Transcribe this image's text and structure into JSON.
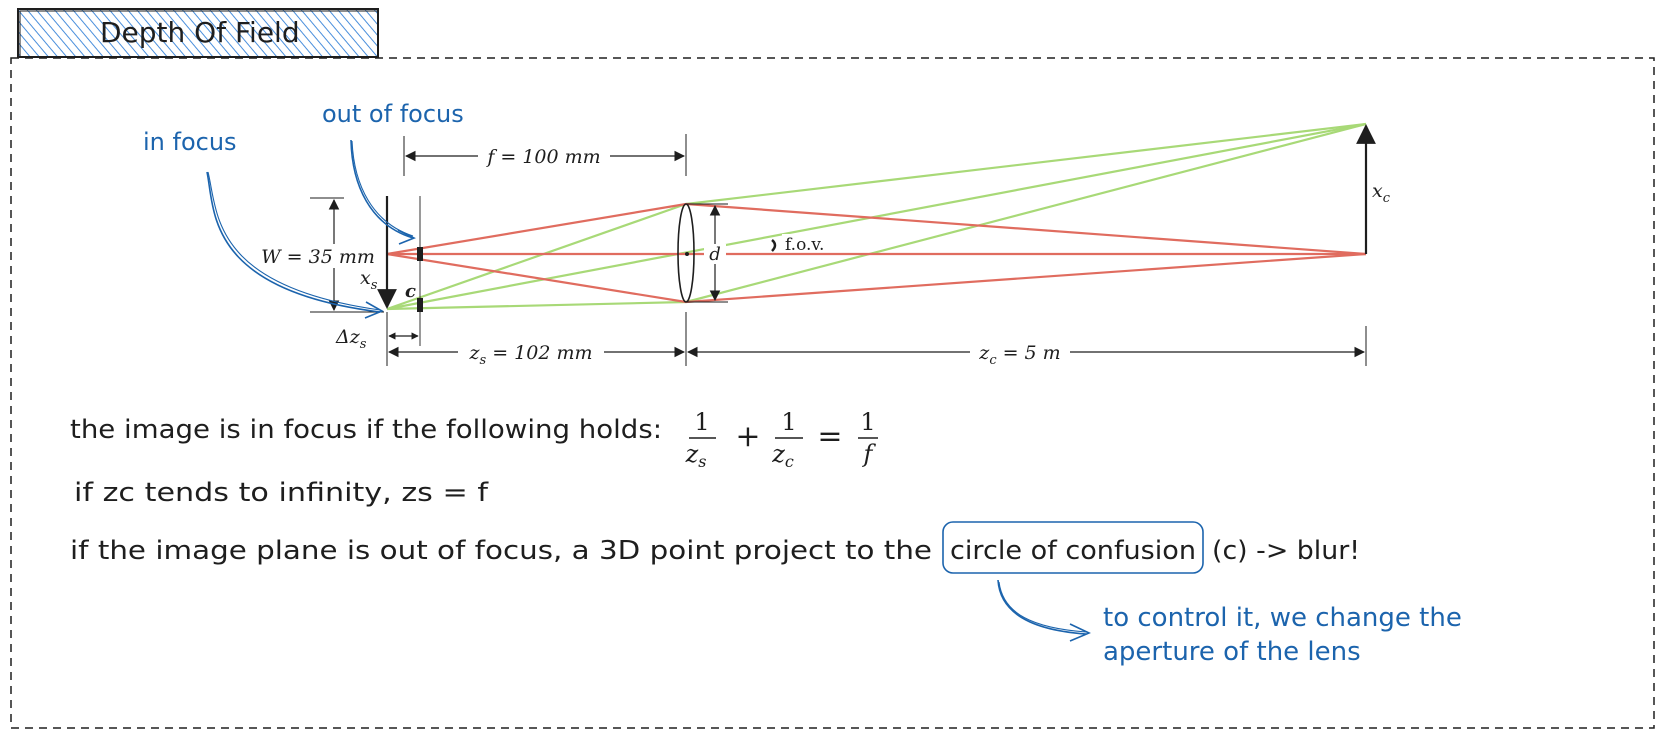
{
  "title": "Depth Of Field",
  "colors": {
    "ink": "#1e1e1e",
    "blue": "#1c64ad",
    "red": "#e06c5f",
    "green": "#a8d977",
    "title_hatch": "#4a8fdc"
  },
  "annotations": {
    "in_focus": "in focus",
    "out_of_focus": "out of focus",
    "control": {
      "line1": "to control it, we change the",
      "line2": "aperture of the lens"
    }
  },
  "diagram_labels": {
    "f": "f = 100 mm",
    "W": "W = 35 mm",
    "xs": "x",
    "xs_sub": "s",
    "c": "c",
    "dzs": "Δz",
    "dzs_sub": "s",
    "zs": "z",
    "zs_sub": "s",
    "zs_val": "= 102 mm",
    "zc": "z",
    "zc_sub": "c",
    "zc_val": "= 5 m",
    "xc": "x",
    "xc_sub": "c",
    "d": "d",
    "fov": "f.o.v."
  },
  "text": {
    "line1": "the image is in focus if the following holds:",
    "line2": "if zc tends to infinity, zs = f",
    "line3_before": "if the image plane is out of focus, a 3D point project to the",
    "line3_boxed": "circle of confusion",
    "line3_after": "(c) -> blur!"
  },
  "formula": {
    "one_a": "1",
    "z_a": "z",
    "z_a_sub": "s",
    "plus": "+",
    "one_b": "1",
    "z_b": "z",
    "z_b_sub": "c",
    "equals": "=",
    "one_c": "1",
    "f": "f"
  }
}
